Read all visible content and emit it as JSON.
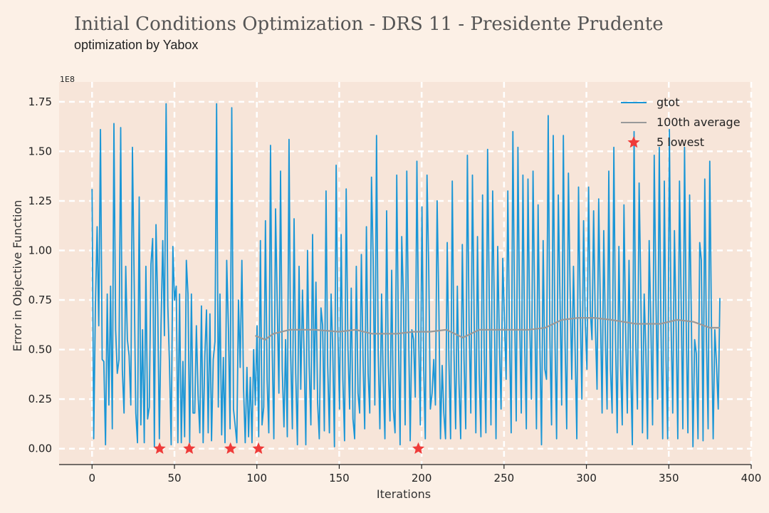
{
  "chart_data": {
    "type": "line",
    "title": "Initial Conditions Optimization - DRS 11 - Presidente Prudente",
    "subtitle": "optimization by Yabox",
    "xlabel": "Iterations",
    "ylabel": "Error in Objective Function",
    "y_multiplier": "1E8",
    "xlim": [
      -20,
      400
    ],
    "ylim": [
      -0.08,
      1.85
    ],
    "x_ticks": [
      0,
      50,
      100,
      150,
      200,
      250,
      300,
      350,
      400
    ],
    "y_ticks": [
      0.0,
      0.25,
      0.5,
      0.75,
      1.0,
      1.25,
      1.5,
      1.75
    ],
    "y_tick_labels": [
      "0.00",
      "0.25",
      "0.50",
      "0.75",
      "1.00",
      "1.25",
      "1.50",
      "1.75"
    ],
    "grid": true,
    "legend_position": "top-right",
    "series": [
      {
        "name": "gtot",
        "color": "#1a96d6",
        "x_start": 0,
        "x_end": 381,
        "values": [
          1.31,
          0.05,
          0.72,
          1.12,
          0.62,
          1.61,
          0.45,
          0.44,
          0.02,
          0.78,
          0.22,
          0.82,
          0.1,
          1.64,
          0.6,
          0.38,
          0.45,
          1.62,
          0.4,
          0.18,
          0.92,
          0.55,
          0.47,
          0.22,
          1.52,
          0.85,
          0.18,
          0.03,
          1.27,
          0.12,
          0.6,
          0.03,
          0.92,
          0.15,
          0.21,
          0.93,
          1.06,
          0.01,
          1.13,
          0.72,
          0.05,
          0.63,
          1.05,
          0.57,
          1.74,
          0.72,
          0.43,
          0.02,
          1.02,
          0.75,
          0.82,
          0.03,
          0.78,
          0.03,
          0.44,
          0.06,
          0.95,
          0.78,
          0.03,
          0.78,
          0.18,
          0.18,
          0.62,
          0.27,
          0.08,
          0.72,
          0.03,
          0.47,
          0.7,
          0.08,
          0.68,
          0.04,
          0.45,
          0.54,
          1.74,
          0.21,
          0.78,
          0.07,
          0.46,
          0.03,
          0.95,
          0.61,
          0.1,
          1.72,
          0.2,
          0.12,
          0.03,
          0.75,
          0.41,
          0.95,
          0.31,
          0.03,
          0.41,
          0.06,
          0.36,
          0.03,
          0.5,
          0.22,
          0.62,
          0.06,
          1.05,
          0.12,
          0.21,
          1.15,
          0.35,
          0.08,
          1.53,
          0.52,
          0.05,
          1.21,
          0.73,
          0.28,
          1.4,
          0.4,
          0.11,
          0.55,
          0.06,
          1.56,
          0.48,
          0.1,
          1.16,
          0.38,
          0.02,
          0.92,
          0.3,
          0.8,
          0.48,
          0.02,
          1.0,
          0.42,
          0.12,
          1.08,
          0.3,
          0.84,
          0.23,
          0.05,
          0.71,
          0.62,
          0.09,
          1.3,
          0.42,
          0.08,
          0.78,
          0.5,
          0.01,
          1.43,
          0.62,
          0.2,
          1.08,
          0.35,
          0.04,
          1.31,
          0.52,
          0.2,
          0.81,
          0.15,
          0.05,
          0.92,
          0.28,
          0.18,
          0.98,
          0.44,
          0.1,
          1.12,
          0.38,
          0.18,
          1.37,
          0.95,
          0.22,
          1.58,
          0.48,
          0.1,
          0.78,
          0.35,
          0.05,
          1.2,
          0.42,
          0.14,
          0.9,
          0.2,
          0.08,
          1.38,
          0.58,
          0.02,
          1.07,
          0.76,
          0.12,
          1.4,
          0.62,
          0.04,
          0.6,
          0.55,
          0.26,
          1.45,
          0.58,
          0.12,
          1.22,
          0.42,
          0.05,
          1.38,
          0.91,
          0.2,
          0.28,
          0.45,
          0.22,
          1.25,
          0.72,
          0.05,
          0.42,
          0.18,
          0.05,
          1.04,
          0.45,
          0.05,
          1.35,
          0.5,
          0.1,
          0.82,
          0.33,
          0.05,
          1.03,
          0.45,
          0.1,
          1.48,
          0.62,
          0.18,
          1.38,
          0.66,
          0.08,
          1.07,
          0.38,
          0.06,
          1.28,
          0.48,
          0.08,
          1.51,
          0.72,
          0.12,
          1.3,
          0.68,
          0.05,
          1.02,
          0.52,
          0.2,
          0.96,
          0.65,
          0.35,
          1.3,
          0.58,
          0.08,
          1.6,
          0.72,
          0.14,
          1.52,
          0.68,
          0.18,
          1.38,
          0.55,
          0.1,
          1.36,
          0.65,
          0.25,
          1.4,
          0.7,
          0.1,
          1.23,
          0.55,
          0.02,
          1.05,
          0.4,
          0.35,
          1.68,
          0.55,
          0.12,
          1.58,
          0.55,
          0.05,
          1.28,
          0.75,
          0.22,
          1.58,
          0.55,
          0.1,
          1.39,
          0.82,
          0.35,
          0.92,
          0.5,
          0.05,
          1.32,
          0.72,
          0.25,
          1.15,
          0.65,
          0.4,
          1.32,
          0.7,
          0.55,
          1.2,
          0.62,
          0.3,
          1.26,
          0.7,
          0.18,
          1.1,
          0.55,
          0.2,
          1.4,
          0.4,
          0.18,
          1.52,
          0.55,
          0.08,
          1.02,
          0.42,
          0.12,
          1.23,
          0.6,
          0.18,
          0.95,
          0.42,
          0.02,
          1.6,
          0.55,
          0.2,
          1.34,
          0.82,
          0.08,
          0.78,
          0.5,
          0.05,
          1.05,
          0.62,
          0.12,
          1.48,
          0.75,
          0.25,
          1.52,
          0.6,
          0.05,
          1.35,
          0.45,
          0.05,
          1.61,
          0.62,
          0.18,
          1.1,
          0.6,
          0.05,
          1.35,
          0.72,
          0.1,
          1.52,
          0.6,
          0.08,
          1.28,
          0.7,
          0.01,
          0.55,
          0.48,
          0.05,
          1.04,
          0.95,
          0.04,
          1.36,
          0.55,
          0.1,
          1.45,
          0.62,
          0.05,
          0.6,
          0.42,
          0.2,
          0.76
        ]
      },
      {
        "name": "100th average",
        "color": "#999999",
        "points": [
          [
            99,
            0.57
          ],
          [
            105,
            0.55
          ],
          [
            110,
            0.58
          ],
          [
            120,
            0.6
          ],
          [
            135,
            0.6
          ],
          [
            150,
            0.59
          ],
          [
            160,
            0.6
          ],
          [
            170,
            0.58
          ],
          [
            185,
            0.58
          ],
          [
            195,
            0.59
          ],
          [
            205,
            0.59
          ],
          [
            215,
            0.6
          ],
          [
            225,
            0.56
          ],
          [
            235,
            0.6
          ],
          [
            250,
            0.6
          ],
          [
            265,
            0.6
          ],
          [
            275,
            0.61
          ],
          [
            285,
            0.65
          ],
          [
            295,
            0.66
          ],
          [
            305,
            0.66
          ],
          [
            315,
            0.65
          ],
          [
            330,
            0.63
          ],
          [
            345,
            0.63
          ],
          [
            355,
            0.65
          ],
          [
            365,
            0.64
          ],
          [
            375,
            0.61
          ],
          [
            381,
            0.61
          ]
        ]
      },
      {
        "name": "5 lowest",
        "color": "#ef3b39",
        "points": [
          [
            41,
            0.0
          ],
          [
            59,
            0.0
          ],
          [
            84,
            0.0
          ],
          [
            101,
            0.0
          ],
          [
            198,
            0.0
          ]
        ]
      }
    ]
  }
}
